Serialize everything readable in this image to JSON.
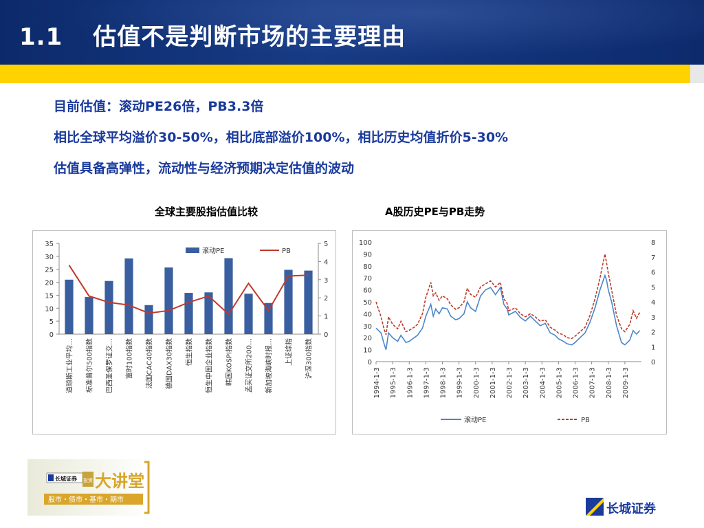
{
  "header": {
    "number": "1.1",
    "title": "估值不是判断市场的主要理由"
  },
  "bullets": [
    "目前估值：滚动PE26倍，PB3.3倍",
    "相比全球平均溢价30-50%，相比底部溢价100%，相比历史均值折价5-30%",
    "估值具备高弹性，流动性与经济预期决定估值的波动"
  ],
  "chart_data": [
    {
      "type": "bar",
      "title": "全球主要股指估值比较",
      "categories": [
        "道琼斯工业平均…",
        "标准普尔500指数",
        "巴西圣保罗证交…",
        "富时100指数",
        "法国CAC40指数",
        "德国DAX30指数",
        "恒生指数",
        "恒生中国企业指数",
        "韩国KOSPI指数",
        "孟买证交所200…",
        "新加坡海峡时报…",
        "上证综指",
        "沪深300指数"
      ],
      "series": [
        {
          "name": "滚动PE",
          "type": "bar",
          "axis": "left",
          "color": "#3a5fa0",
          "values": [
            21,
            14.3,
            20.5,
            29.2,
            11.2,
            25.7,
            15.9,
            16.1,
            29.3,
            15.6,
            12,
            24.8,
            24.5
          ]
        },
        {
          "name": "PB",
          "type": "line",
          "axis": "right",
          "color": "#c0392b",
          "values": [
            3.8,
            2.1,
            1.75,
            1.6,
            1.15,
            1.3,
            1.75,
            2.1,
            1.1,
            2.8,
            1.3,
            3.2,
            3.25
          ]
        }
      ],
      "ylim": [
        0,
        35
      ],
      "yticks": [
        0,
        5,
        10,
        15,
        20,
        25,
        30,
        35
      ],
      "y2lim": [
        0,
        5
      ],
      "y2ticks": [
        0,
        1,
        2,
        3,
        4,
        5
      ],
      "legend": "top-right",
      "grid": false
    },
    {
      "type": "line",
      "title": "A股历史PE与PB走势",
      "x_labels": [
        "1994-1-3",
        "1995-1-3",
        "1996-1-3",
        "1997-1-3",
        "1998-1-3",
        "1999-1-3",
        "2000-1-3",
        "2001-1-3",
        "2002-1-3",
        "2003-1-3",
        "2004-1-3",
        "2005-1-3",
        "2006-1-3",
        "2007-1-3",
        "2008-1-3",
        "2009-1-3"
      ],
      "x_range": [
        1994.0,
        2010.0
      ],
      "series": [
        {
          "name": "滚动PE",
          "axis": "left",
          "color": "#4a86c8",
          "style": "solid",
          "points": [
            [
              1994.0,
              28
            ],
            [
              1994.3,
              24
            ],
            [
              1994.5,
              14
            ],
            [
              1994.6,
              10
            ],
            [
              1994.75,
              24
            ],
            [
              1995.0,
              20
            ],
            [
              1995.3,
              17
            ],
            [
              1995.5,
              22
            ],
            [
              1995.8,
              16
            ],
            [
              1996.0,
              17
            ],
            [
              1996.3,
              20
            ],
            [
              1996.5,
              22
            ],
            [
              1996.8,
              28
            ],
            [
              1997.0,
              38
            ],
            [
              1997.3,
              48
            ],
            [
              1997.45,
              38
            ],
            [
              1997.6,
              44
            ],
            [
              1997.8,
              40
            ],
            [
              1998.0,
              45
            ],
            [
              1998.3,
              44
            ],
            [
              1998.5,
              38
            ],
            [
              1998.8,
              35
            ],
            [
              1999.0,
              36
            ],
            [
              1999.3,
              40
            ],
            [
              1999.5,
              50
            ],
            [
              1999.7,
              45
            ],
            [
              2000.0,
              42
            ],
            [
              2000.3,
              55
            ],
            [
              2000.6,
              60
            ],
            [
              2000.9,
              62
            ],
            [
              2001.2,
              56
            ],
            [
              2001.5,
              62
            ],
            [
              2001.7,
              48
            ],
            [
              2001.9,
              44
            ],
            [
              2002.0,
              39
            ],
            [
              2002.4,
              42
            ],
            [
              2002.7,
              37
            ],
            [
              2003.0,
              34
            ],
            [
              2003.3,
              38
            ],
            [
              2003.6,
              34
            ],
            [
              2003.9,
              30
            ],
            [
              2004.2,
              32
            ],
            [
              2004.5,
              24
            ],
            [
              2004.8,
              22
            ],
            [
              2005.0,
              19
            ],
            [
              2005.3,
              17
            ],
            [
              2005.5,
              15
            ],
            [
              2005.8,
              14
            ],
            [
              2006.0,
              16
            ],
            [
              2006.3,
              20
            ],
            [
              2006.6,
              24
            ],
            [
              2006.9,
              33
            ],
            [
              2007.2,
              45
            ],
            [
              2007.5,
              60
            ],
            [
              2007.8,
              72
            ],
            [
              2007.9,
              68
            ],
            [
              2008.0,
              60
            ],
            [
              2008.2,
              50
            ],
            [
              2008.5,
              30
            ],
            [
              2008.8,
              16
            ],
            [
              2009.0,
              14
            ],
            [
              2009.3,
              18
            ],
            [
              2009.5,
              26
            ],
            [
              2009.7,
              23
            ],
            [
              2009.9,
              26
            ]
          ]
        },
        {
          "name": "PB",
          "axis": "right",
          "color": "#c0392b",
          "style": "dashed",
          "points": [
            [
              1994.0,
              4.0
            ],
            [
              1994.3,
              3.0
            ],
            [
              1994.5,
              2.1
            ],
            [
              1994.6,
              1.8
            ],
            [
              1994.75,
              3.0
            ],
            [
              1995.0,
              2.5
            ],
            [
              1995.3,
              2.2
            ],
            [
              1995.5,
              2.7
            ],
            [
              1995.8,
              2.0
            ],
            [
              1996.0,
              2.1
            ],
            [
              1996.3,
              2.3
            ],
            [
              1996.5,
              2.5
            ],
            [
              1996.8,
              3.2
            ],
            [
              1997.0,
              4.3
            ],
            [
              1997.3,
              5.3
            ],
            [
              1997.45,
              4.4
            ],
            [
              1997.6,
              4.6
            ],
            [
              1997.8,
              4.1
            ],
            [
              1998.0,
              4.4
            ],
            [
              1998.3,
              4.2
            ],
            [
              1998.5,
              3.8
            ],
            [
              1998.8,
              3.5
            ],
            [
              1999.0,
              3.6
            ],
            [
              1999.3,
              4.0
            ],
            [
              1999.5,
              4.9
            ],
            [
              1999.7,
              4.5
            ],
            [
              2000.0,
              4.3
            ],
            [
              2000.3,
              5.0
            ],
            [
              2000.6,
              5.2
            ],
            [
              2000.9,
              5.4
            ],
            [
              2001.2,
              5.0
            ],
            [
              2001.5,
              5.3
            ],
            [
              2001.7,
              4.2
            ],
            [
              2001.9,
              3.9
            ],
            [
              2002.0,
              3.4
            ],
            [
              2002.4,
              3.6
            ],
            [
              2002.7,
              3.2
            ],
            [
              2003.0,
              3.0
            ],
            [
              2003.3,
              3.2
            ],
            [
              2003.6,
              3.0
            ],
            [
              2003.9,
              2.7
            ],
            [
              2004.2,
              2.8
            ],
            [
              2004.5,
              2.3
            ],
            [
              2004.8,
              2.1
            ],
            [
              2005.0,
              1.9
            ],
            [
              2005.3,
              1.8
            ],
            [
              2005.5,
              1.6
            ],
            [
              2005.8,
              1.55
            ],
            [
              2006.0,
              1.7
            ],
            [
              2006.3,
              2.0
            ],
            [
              2006.6,
              2.3
            ],
            [
              2006.9,
              3.1
            ],
            [
              2007.2,
              4.2
            ],
            [
              2007.5,
              5.6
            ],
            [
              2007.8,
              7.2
            ],
            [
              2007.9,
              6.6
            ],
            [
              2008.0,
              5.9
            ],
            [
              2008.2,
              4.8
            ],
            [
              2008.5,
              3.1
            ],
            [
              2008.8,
              2.2
            ],
            [
              2009.0,
              2.0
            ],
            [
              2009.3,
              2.5
            ],
            [
              2009.5,
              3.4
            ],
            [
              2009.7,
              2.9
            ],
            [
              2009.9,
              3.3
            ]
          ]
        }
      ],
      "ylim": [
        0,
        100
      ],
      "yticks": [
        0,
        10,
        20,
        30,
        40,
        50,
        60,
        70,
        80,
        90,
        100
      ],
      "y2lim": [
        0,
        8
      ],
      "y2ticks": [
        0,
        1,
        2,
        3,
        4,
        5,
        6,
        7,
        8
      ],
      "legend": "bottom",
      "grid": false
    }
  ],
  "footer": {
    "logo_left_badge": "长城证券",
    "logo_left_invest": "投资",
    "logo_left_title": "大讲堂",
    "logo_left_tagline": "股市・债市・基市・期市",
    "logo_right_text": "长城证券"
  },
  "colors": {
    "header_blue": "#0c2a6b",
    "accent_yellow": "#ffd200",
    "text_blue": "#1a3a9c"
  }
}
